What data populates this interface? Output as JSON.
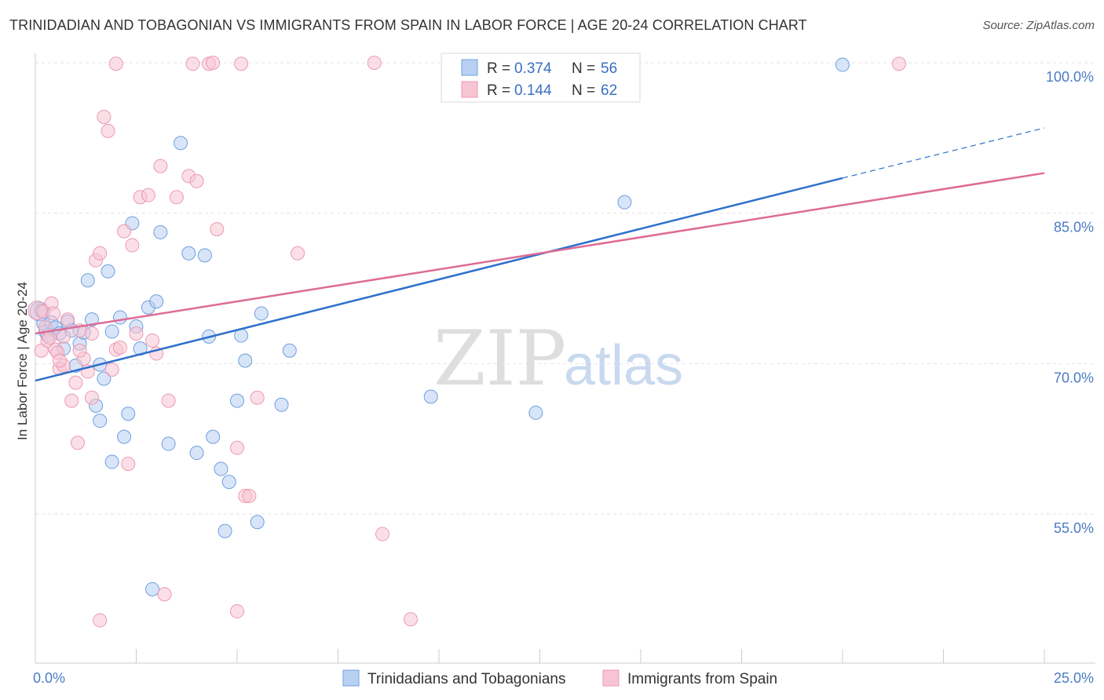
{
  "title": "TRINIDADIAN AND TOBAGONIAN VS IMMIGRANTS FROM SPAIN IN LABOR FORCE | AGE 20-24 CORRELATION CHART",
  "source": "Source: ZipAtlas.com",
  "watermark": {
    "zip": "ZIP",
    "atlas": "atlas"
  },
  "chart_data": {
    "type": "scatter",
    "ylabel": "In Labor Force | Age 20-24",
    "xlim": [
      0,
      25
    ],
    "ylim": [
      40,
      100
    ],
    "x_tick_labels": [
      {
        "value": 0,
        "label": "0.0%"
      },
      {
        "value": 25,
        "label": "25.0%"
      }
    ],
    "y_tick_labels": [
      {
        "value": 100,
        "label": "100.0%"
      },
      {
        "value": 85,
        "label": "85.0%"
      },
      {
        "value": 70,
        "label": "70.0%"
      },
      {
        "value": 55,
        "label": "55.0%"
      }
    ],
    "grid": true,
    "legend_placement": "top-center",
    "series": [
      {
        "name": "Trinidadians and Tobagonians",
        "color": "#6f9fdf",
        "fill": "#b8d0f2",
        "line_color": "#2e70c9",
        "R": "0.374",
        "N": "56",
        "trend": {
          "x0": 0,
          "y0": 68.3,
          "x1": 20,
          "y1": 88.5,
          "dashed_to_x": 25,
          "dashed_to_y": 93.5
        },
        "points": [
          [
            0.1,
            75.2
          ],
          [
            0.2,
            74.0
          ],
          [
            0.25,
            73.2
          ],
          [
            0.3,
            72.8
          ],
          [
            0.4,
            74.1
          ],
          [
            0.5,
            73.6
          ],
          [
            0.6,
            73.0
          ],
          [
            0.7,
            71.5
          ],
          [
            0.8,
            74.2
          ],
          [
            1.0,
            69.8
          ],
          [
            1.1,
            72.0
          ],
          [
            1.2,
            73.1
          ],
          [
            1.3,
            78.3
          ],
          [
            1.4,
            74.4
          ],
          [
            1.5,
            65.8
          ],
          [
            1.6,
            64.3
          ],
          [
            1.7,
            68.5
          ],
          [
            1.8,
            79.2
          ],
          [
            1.9,
            60.2
          ],
          [
            2.1,
            74.6
          ],
          [
            2.2,
            62.7
          ],
          [
            2.3,
            65.0
          ],
          [
            2.4,
            84.0
          ],
          [
            2.5,
            73.7
          ],
          [
            2.6,
            71.5
          ],
          [
            2.8,
            75.6
          ],
          [
            3.0,
            76.2
          ],
          [
            3.1,
            83.1
          ],
          [
            3.3,
            62.0
          ],
          [
            3.6,
            92.0
          ],
          [
            3.8,
            81.0
          ],
          [
            4.0,
            61.1
          ],
          [
            4.2,
            80.8
          ],
          [
            4.3,
            72.7
          ],
          [
            4.4,
            62.7
          ],
          [
            4.6,
            59.5
          ],
          [
            4.7,
            53.3
          ],
          [
            4.8,
            58.2
          ],
          [
            5.0,
            66.3
          ],
          [
            5.1,
            72.8
          ],
          [
            5.2,
            70.3
          ],
          [
            5.5,
            54.2
          ],
          [
            5.6,
            75.0
          ],
          [
            6.1,
            65.9
          ],
          [
            6.3,
            71.3
          ],
          [
            9.8,
            66.7
          ],
          [
            12.4,
            65.1
          ],
          [
            13.2,
            97.2
          ],
          [
            14.6,
            86.1
          ],
          [
            20.0,
            99.8
          ],
          [
            1.9,
            73.2
          ],
          [
            2.9,
            47.5
          ],
          [
            0.9,
            73.3
          ],
          [
            1.6,
            69.9
          ],
          [
            0.15,
            75.3
          ],
          [
            12.0,
            99.9
          ]
        ]
      },
      {
        "name": "Immigrants from Spain",
        "color": "#ec9ab3",
        "fill": "#f7c4d3",
        "line_color": "#de6b95",
        "R": "0.144",
        "N": "62",
        "trend": {
          "x0": 0,
          "y0": 73.0,
          "x1": 25,
          "y1": 89.0
        },
        "points": [
          [
            0.05,
            75.3
          ],
          [
            0.15,
            71.3
          ],
          [
            0.2,
            75.2
          ],
          [
            0.3,
            72.3
          ],
          [
            0.4,
            76.0
          ],
          [
            0.5,
            71.4
          ],
          [
            0.55,
            71.1
          ],
          [
            0.6,
            69.5
          ],
          [
            0.7,
            69.8
          ],
          [
            0.8,
            74.4
          ],
          [
            0.9,
            66.3
          ],
          [
            1.0,
            68.1
          ],
          [
            1.05,
            62.1
          ],
          [
            1.1,
            73.3
          ],
          [
            1.2,
            70.5
          ],
          [
            1.3,
            69.2
          ],
          [
            1.4,
            66.6
          ],
          [
            1.5,
            80.3
          ],
          [
            1.6,
            81.0
          ],
          [
            1.7,
            94.6
          ],
          [
            1.8,
            93.2
          ],
          [
            1.9,
            69.4
          ],
          [
            2.0,
            71.4
          ],
          [
            2.1,
            71.6
          ],
          [
            2.2,
            83.2
          ],
          [
            2.3,
            60.0
          ],
          [
            2.4,
            81.8
          ],
          [
            2.5,
            73.0
          ],
          [
            2.6,
            86.6
          ],
          [
            2.8,
            86.8
          ],
          [
            2.9,
            72.3
          ],
          [
            3.0,
            71.0
          ],
          [
            3.1,
            89.7
          ],
          [
            3.2,
            47.0
          ],
          [
            3.3,
            66.3
          ],
          [
            3.5,
            86.6
          ],
          [
            3.8,
            88.7
          ],
          [
            4.0,
            88.2
          ],
          [
            4.5,
            83.4
          ],
          [
            5.0,
            61.6
          ],
          [
            5.2,
            56.8
          ],
          [
            5.3,
            56.8
          ],
          [
            5.5,
            66.6
          ],
          [
            6.5,
            81.0
          ],
          [
            8.6,
            53.0
          ],
          [
            9.3,
            44.5
          ],
          [
            2.0,
            99.9
          ],
          [
            3.9,
            99.9
          ],
          [
            4.3,
            99.9
          ],
          [
            4.4,
            100.0
          ],
          [
            5.1,
            99.9
          ],
          [
            8.4,
            100.0
          ],
          [
            21.4,
            99.9
          ],
          [
            1.6,
            44.4
          ],
          [
            5.0,
            45.3
          ],
          [
            0.25,
            73.6
          ],
          [
            0.7,
            72.7
          ],
          [
            1.1,
            71.3
          ],
          [
            0.45,
            75.0
          ],
          [
            0.35,
            72.6
          ],
          [
            1.4,
            73.0
          ],
          [
            0.6,
            70.3
          ]
        ]
      }
    ]
  }
}
